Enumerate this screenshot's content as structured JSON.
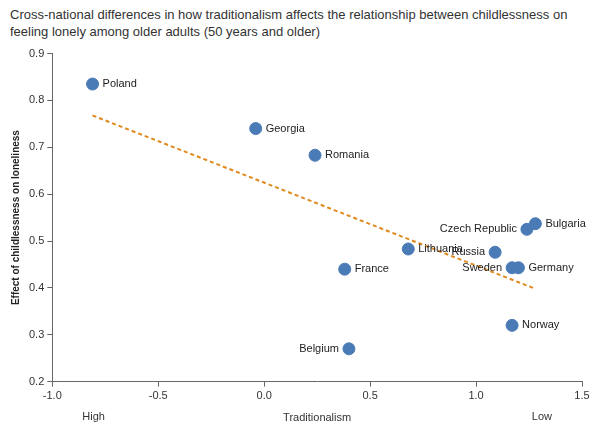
{
  "chart_data": {
    "type": "scatter",
    "title": "Cross-national differences in how traditionalism affects the relationship between childlessness on feeling lonely among older adults (50 years and older)",
    "x_label": "Traditionalism",
    "x_label_ends": [
      "High",
      "Low"
    ],
    "y_label": "Effect of childlessness on loneliness",
    "labels": [
      "Poland",
      "Georgia",
      "Romania",
      "Lithuania",
      "France",
      "Belgium",
      "Russia",
      "Czech Republic",
      "Bulgaria",
      "Sweden",
      "Germany",
      "Norway"
    ],
    "x": [
      -0.81,
      -0.04,
      0.24,
      0.68,
      0.38,
      0.4,
      1.09,
      1.24,
      1.28,
      1.17,
      1.2,
      1.17
    ],
    "values": [
      0.835,
      0.74,
      0.683,
      0.483,
      0.44,
      0.27,
      0.476,
      0.525,
      0.537,
      0.443,
      0.443,
      0.32
    ],
    "color": "#4b7bb6",
    "marker": "circle",
    "trend_line": {
      "x": [
        -0.81,
        1.28
      ],
      "values": [
        0.768,
        0.398
      ],
      "color": "#e08a1e",
      "line_style": "dashed"
    },
    "xlim": [
      -1.0,
      1.5
    ],
    "ylim": [
      0.2,
      0.9
    ],
    "xticks": [
      {
        "value": -1.0,
        "label": "-1.0"
      },
      {
        "value": -0.5,
        "label": "-0.5"
      },
      {
        "value": 0.0,
        "label": "0.0"
      },
      {
        "value": 0.5,
        "label": "0.5"
      },
      {
        "value": 1.0,
        "label": "1.0"
      },
      1.5
    ],
    "yticks": [
      0.2,
      0.3,
      0.4,
      0.5,
      0.6,
      0.7,
      0.8,
      0.9
    ],
    "grid": false
  }
}
